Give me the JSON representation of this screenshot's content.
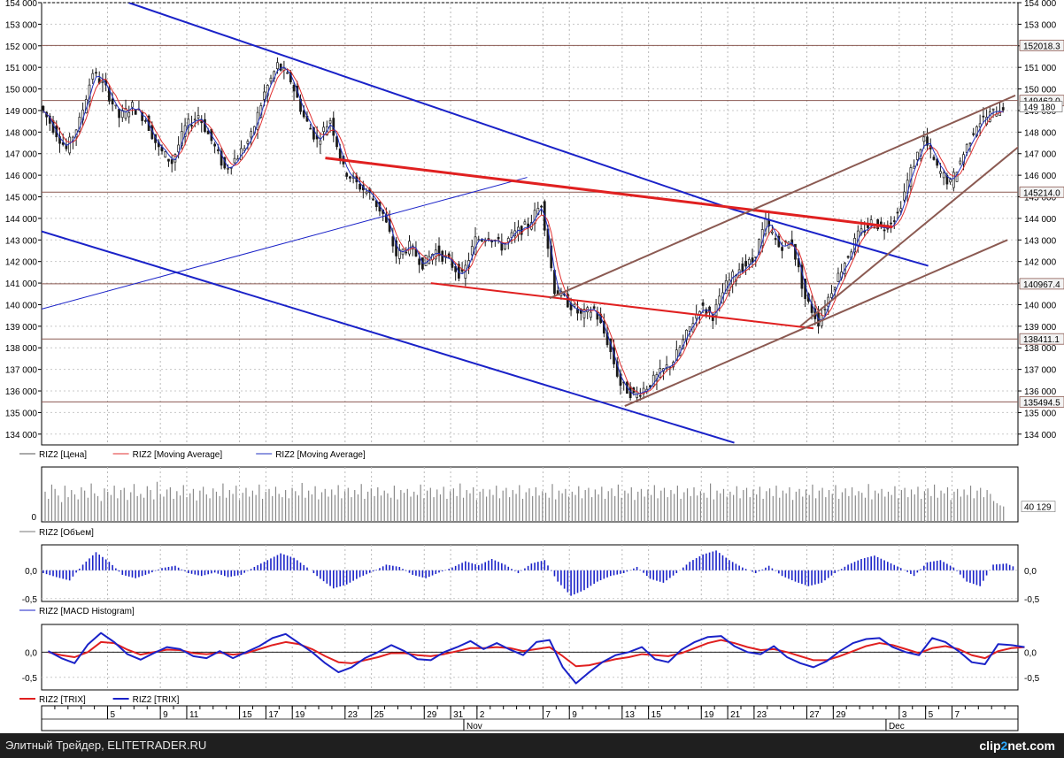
{
  "footer": {
    "caption": "Элитный Трейдер, ELITETRADER.RU",
    "brand_prefix": "clip",
    "brand_two": "2",
    "brand_suffix": "net.com"
  },
  "legends": {
    "price": [
      {
        "name": "RIZ2 [Цена]",
        "color": "#555555"
      },
      {
        "name": "RIZ2 [Moving Average]",
        "color": "#e03030"
      },
      {
        "name": "RIZ2 [Moving Average]",
        "color": "#2030c0"
      }
    ],
    "volume": [
      {
        "name": "RIZ2 [Объем]",
        "color": "#777777"
      }
    ],
    "macd": [
      {
        "name": "RIZ2 [MACD Histogram]",
        "color": "#1a22c8"
      }
    ],
    "trix": [
      {
        "name": "RIZ2 [TRIX]",
        "color": "#e02020"
      },
      {
        "name": "RIZ2 [TRIX]",
        "color": "#1a22c8"
      }
    ]
  },
  "chart_data": [
    {
      "type": "candlestick",
      "panel": "price",
      "symbol": "RIZ2",
      "x_ticks": [
        {
          "label": "5",
          "x": 5
        },
        {
          "label": "9",
          "x": 9
        },
        {
          "label": "11",
          "x": 11
        },
        {
          "label": "15",
          "x": 15
        },
        {
          "label": "17",
          "x": 17
        },
        {
          "label": "19",
          "x": 19
        },
        {
          "label": "23",
          "x": 23
        },
        {
          "label": "25",
          "x": 25
        },
        {
          "label": "29",
          "x": 29
        },
        {
          "label": "31",
          "x": 31
        },
        {
          "label": "2",
          "x": 33
        },
        {
          "label": "7",
          "x": 38
        },
        {
          "label": "9",
          "x": 40
        },
        {
          "label": "13",
          "x": 44
        },
        {
          "label": "15",
          "x": 46
        },
        {
          "label": "19",
          "x": 50
        },
        {
          "label": "21",
          "x": 52
        },
        {
          "label": "23",
          "x": 54
        },
        {
          "label": "27",
          "x": 58
        },
        {
          "label": "29",
          "x": 60
        },
        {
          "label": "3",
          "x": 65
        },
        {
          "label": "5",
          "x": 67
        },
        {
          "label": "7",
          "x": 69
        }
      ],
      "month_labels": [
        {
          "label": "Nov",
          "x": 32
        },
        {
          "label": "Dec",
          "x": 64
        }
      ],
      "x_range": [
        0,
        74
      ],
      "ylim": [
        133500,
        154000
      ],
      "y_ticks": [
        134000,
        135000,
        136000,
        137000,
        138000,
        139000,
        140000,
        141000,
        142000,
        143000,
        144000,
        145000,
        146000,
        147000,
        148000,
        149000,
        150000,
        151000,
        152000,
        153000,
        154000
      ],
      "y_tick_labels": [
        "134 000",
        "135 000",
        "136 000",
        "137 000",
        "138 000",
        "139 000",
        "140 000",
        "141 000",
        "142 000",
        "143 000",
        "144 000",
        "145 000",
        "146 000",
        "147 000",
        "148 000",
        "149 000",
        "150 000",
        "151 000",
        "152 000",
        "153 000",
        "154 000"
      ],
      "close_anchors": [
        [
          0,
          149200
        ],
        [
          1,
          148200
        ],
        [
          2,
          147200
        ],
        [
          3,
          148500
        ],
        [
          4,
          150800
        ],
        [
          5,
          150000
        ],
        [
          6,
          148700
        ],
        [
          7,
          149200
        ],
        [
          8,
          148600
        ],
        [
          9,
          147200
        ],
        [
          10,
          146600
        ],
        [
          11,
          148200
        ],
        [
          12,
          148800
        ],
        [
          13,
          147600
        ],
        [
          14,
          146300
        ],
        [
          15,
          146900
        ],
        [
          16,
          147800
        ],
        [
          17,
          149800
        ],
        [
          18,
          151100
        ],
        [
          19,
          150400
        ],
        [
          20,
          148700
        ],
        [
          21,
          147600
        ],
        [
          22,
          148600
        ],
        [
          23,
          146300
        ],
        [
          24,
          145600
        ],
        [
          25,
          145100
        ],
        [
          26,
          144200
        ],
        [
          27,
          142300
        ],
        [
          28,
          142700
        ],
        [
          29,
          141900
        ],
        [
          30,
          142500
        ],
        [
          31,
          142000
        ],
        [
          32,
          141300
        ],
        [
          33,
          143000
        ],
        [
          34,
          143200
        ],
        [
          35,
          142700
        ],
        [
          36,
          143300
        ],
        [
          37,
          143700
        ],
        [
          38,
          144700
        ],
        [
          39,
          140700
        ],
        [
          40,
          140100
        ],
        [
          41,
          139500
        ],
        [
          42,
          139800
        ],
        [
          43,
          138300
        ],
        [
          44,
          136300
        ],
        [
          45,
          135800
        ],
        [
          46,
          136200
        ],
        [
          47,
          136800
        ],
        [
          48,
          137400
        ],
        [
          49,
          138600
        ],
        [
          50,
          139900
        ],
        [
          51,
          139500
        ],
        [
          52,
          140900
        ],
        [
          53,
          141700
        ],
        [
          54,
          142000
        ],
        [
          55,
          143800
        ],
        [
          56,
          142700
        ],
        [
          57,
          142900
        ],
        [
          58,
          140300
        ],
        [
          59,
          139200
        ],
        [
          60,
          140700
        ],
        [
          61,
          142000
        ],
        [
          62,
          143200
        ],
        [
          63,
          143800
        ],
        [
          64,
          143600
        ],
        [
          65,
          144200
        ],
        [
          66,
          146200
        ],
        [
          67,
          147700
        ],
        [
          68,
          146300
        ],
        [
          69,
          145600
        ],
        [
          70,
          147000
        ],
        [
          71,
          148400
        ],
        [
          72,
          148800
        ],
        [
          73,
          149200
        ]
      ],
      "moving_averages": [
        {
          "name": "RIZ2 [Moving Average]",
          "color": "#e03030",
          "period": 5
        },
        {
          "name": "RIZ2 [Moving Average]",
          "color": "#2030c0",
          "period": 3
        }
      ],
      "horizontal_levels": [
        {
          "value": 152018,
          "label": "152018.3"
        },
        {
          "value": 149462,
          "label": "149462.0"
        },
        {
          "value": 145214,
          "label": "145214.0"
        },
        {
          "value": 140967,
          "label": "140967.4"
        },
        {
          "value": 138411,
          "label": "138411.1"
        },
        {
          "value": 135494,
          "label": "135494.5"
        }
      ],
      "last_value_label": {
        "value": 149180,
        "label": "149 180"
      },
      "trendlines": [
        {
          "color": "#1a22c8",
          "width": 2,
          "points": [
            [
              6.6,
              154000
            ],
            [
              52.5,
              144400
            ],
            [
              67.2,
              141800
            ]
          ]
        },
        {
          "color": "#1a22c8",
          "width": 2,
          "points": [
            [
              0,
              143400
            ],
            [
              52.5,
              133600
            ]
          ]
        },
        {
          "color": "#1a22c8",
          "width": 1,
          "points": [
            [
              0,
              139800
            ],
            [
              36.8,
              145900
            ]
          ]
        },
        {
          "color": "#e02020",
          "width": 3,
          "points": [
            [
              21.5,
              146800
            ],
            [
              64.5,
              143600
            ]
          ]
        },
        {
          "color": "#e02020",
          "width": 2,
          "points": [
            [
              29.5,
              141000
            ],
            [
              58.5,
              138900
            ]
          ]
        },
        {
          "color": "#8b5a52",
          "width": 2,
          "points": [
            [
              38.5,
              140300
            ],
            [
              73.8,
              149700
            ]
          ]
        },
        {
          "color": "#8b5a52",
          "width": 2,
          "points": [
            [
              44.2,
              135300
            ],
            [
              73.2,
              143000
            ]
          ]
        },
        {
          "color": "#8b5a52",
          "width": 2,
          "points": [
            [
              57.5,
              139000
            ],
            [
              75,
              147800
            ]
          ]
        }
      ]
    },
    {
      "type": "bar",
      "panel": "volume",
      "name": "RIZ2 [Объем]",
      "ylim": [
        0,
        100
      ],
      "y_tick_labels": [
        "0"
      ],
      "last_value_label": "40 129",
      "bars_per_day": 4,
      "values": [
        55,
        42,
        68,
        60,
        48,
        36,
        66,
        45,
        58,
        50,
        41,
        63,
        57,
        44,
        70,
        52,
        47,
        38,
        61,
        55,
        49,
        66,
        43,
        58,
        62,
        40,
        54,
        69,
        47,
        51,
        44,
        65,
        58,
        41,
        73,
        50,
        46,
        59,
        63,
        42,
        56,
        48,
        67,
        45,
        52,
        60,
        39,
        57,
        64,
        50,
        43,
        61,
        55,
        47,
        70,
        44,
        58,
        51,
        66,
        40,
        53,
        62,
        46,
        57,
        49,
        68,
        42,
        55,
        60,
        47,
        64,
        51,
        45,
        58,
        43,
        62,
        56,
        48,
        71,
        44,
        57,
        50,
        65,
        41,
        54,
        60,
        46,
        59,
        49,
        67,
        43,
        56,
        62,
        45,
        58,
        50,
        69,
        42,
        55,
        61,
        47,
        63,
        48,
        57,
        52,
        44,
        66,
        41,
        58,
        53,
        60,
        46,
        55,
        49,
        68,
        43,
        57,
        62,
        45,
        59,
        50,
        64,
        42,
        56,
        61,
        47,
        70,
        44,
        58,
        52,
        63,
        40,
        55,
        60,
        46,
        59,
        49,
        66,
        43,
        57,
        62,
        45,
        58,
        51,
        67,
        42,
        54,
        61,
        47,
        63,
        48,
        56,
        53,
        44,
        69,
        41,
        57,
        52,
        60,
        46,
        55,
        49,
        65,
        43,
        58,
        62,
        45,
        59,
        50,
        64,
        42,
        56,
        61,
        47,
        68,
        44,
        57,
        52,
        63,
        40,
        55,
        60,
        46,
        59,
        49,
        67,
        43,
        57,
        62,
        45,
        58,
        51,
        66,
        42,
        54,
        61,
        47,
        63,
        48,
        56,
        53,
        44,
        70,
        41,
        57,
        52,
        60,
        46,
        55,
        49,
        65,
        43,
        58,
        62,
        45,
        59,
        50,
        64,
        42,
        56,
        61,
        47,
        66,
        44,
        57,
        52,
        63,
        40,
        55,
        60,
        46,
        59,
        49,
        68,
        43,
        57,
        62,
        45,
        58,
        51,
        67,
        42,
        54,
        61,
        47,
        63,
        48,
        56,
        53,
        44,
        69,
        41,
        57,
        52,
        60,
        46,
        55,
        49,
        65,
        43,
        58,
        62,
        45,
        59,
        50,
        64,
        42,
        56,
        61,
        47,
        68,
        44,
        57,
        52,
        63,
        40,
        55,
        60,
        46,
        59,
        49,
        66,
        43,
        57,
        62,
        45,
        58,
        51,
        38,
        34,
        30,
        28
      ]
    },
    {
      "type": "bar",
      "panel": "macd",
      "name": "RIZ2 [MACD Histogram]",
      "ylim": [
        -0.55,
        0.45
      ],
      "y_ticks": [
        0,
        -0.5
      ],
      "y_tick_labels": [
        "0,0",
        "-0,5"
      ],
      "bars_per_day": 4,
      "values_generator": "daily",
      "daily_values": [
        -0.05,
        -0.12,
        -0.18,
        0.1,
        0.32,
        0.15,
        -0.08,
        -0.14,
        -0.06,
        0.04,
        0.08,
        -0.05,
        -0.1,
        -0.04,
        -0.12,
        -0.08,
        0.06,
        0.18,
        0.3,
        0.22,
        0.05,
        -0.15,
        -0.32,
        -0.25,
        -0.12,
        -0.02,
        0.1,
        0.06,
        -0.08,
        -0.14,
        -0.04,
        0.05,
        0.16,
        0.09,
        0.2,
        0.1,
        -0.05,
        0.12,
        0.18,
        -0.2,
        -0.45,
        -0.35,
        -0.2,
        -0.1,
        -0.05,
        0.06,
        -0.15,
        -0.22,
        -0.05,
        0.15,
        0.28,
        0.35,
        0.18,
        0.05,
        -0.05,
        0.08,
        -0.1,
        -0.2,
        -0.28,
        -0.22,
        -0.05,
        0.1,
        0.2,
        0.26,
        0.15,
        0.04,
        -0.1,
        0.14,
        0.18,
        0.05,
        -0.2,
        -0.28,
        0.1,
        0.12,
        0.02
      ]
    },
    {
      "type": "line",
      "panel": "trix",
      "ylim": [
        -0.75,
        0.55
      ],
      "y_ticks": [
        0,
        -0.5
      ],
      "y_tick_labels": [
        "0,0",
        "-0,5"
      ],
      "series": [
        {
          "name": "RIZ2 [TRIX]",
          "color": "#e02020",
          "values": [
            0.0,
            -0.06,
            -0.1,
            0.0,
            0.2,
            0.18,
            0.05,
            -0.05,
            0.0,
            0.05,
            0.04,
            -0.02,
            -0.04,
            -0.01,
            -0.05,
            -0.02,
            0.06,
            0.14,
            0.2,
            0.16,
            0.06,
            -0.08,
            -0.2,
            -0.22,
            -0.16,
            -0.1,
            -0.02,
            -0.02,
            -0.06,
            -0.08,
            -0.04,
            0.02,
            0.08,
            0.08,
            0.1,
            0.08,
            0.02,
            0.06,
            0.1,
            -0.08,
            -0.28,
            -0.26,
            -0.2,
            -0.14,
            -0.1,
            -0.04,
            -0.06,
            -0.08,
            -0.02,
            0.08,
            0.18,
            0.24,
            0.18,
            0.1,
            0.04,
            0.06,
            0.0,
            -0.08,
            -0.16,
            -0.16,
            -0.08,
            0.02,
            0.12,
            0.18,
            0.14,
            0.06,
            -0.02,
            0.08,
            0.12,
            0.06,
            -0.06,
            -0.12,
            0.02,
            0.08,
            0.1
          ]
        },
        {
          "name": "RIZ2 [TRIX]",
          "color": "#1a22c8",
          "values": [
            0.02,
            -0.12,
            -0.22,
            0.15,
            0.38,
            0.2,
            -0.04,
            -0.15,
            -0.02,
            0.1,
            0.06,
            -0.08,
            -0.12,
            0.02,
            -0.12,
            0.0,
            0.12,
            0.28,
            0.36,
            0.18,
            0.0,
            -0.22,
            -0.4,
            -0.3,
            -0.12,
            0.0,
            0.14,
            0.02,
            -0.14,
            -0.16,
            0.0,
            0.1,
            0.22,
            0.06,
            0.18,
            0.05,
            -0.06,
            0.2,
            0.24,
            -0.3,
            -0.62,
            -0.4,
            -0.2,
            -0.06,
            0.0,
            0.1,
            -0.14,
            -0.2,
            0.05,
            0.2,
            0.3,
            0.32,
            0.12,
            0.0,
            -0.04,
            0.12,
            -0.1,
            -0.22,
            -0.3,
            -0.18,
            0.02,
            0.18,
            0.26,
            0.28,
            0.1,
            0.0,
            -0.06,
            0.28,
            0.2,
            0.02,
            -0.2,
            -0.24,
            0.16,
            0.14,
            0.1
          ]
        }
      ]
    }
  ]
}
